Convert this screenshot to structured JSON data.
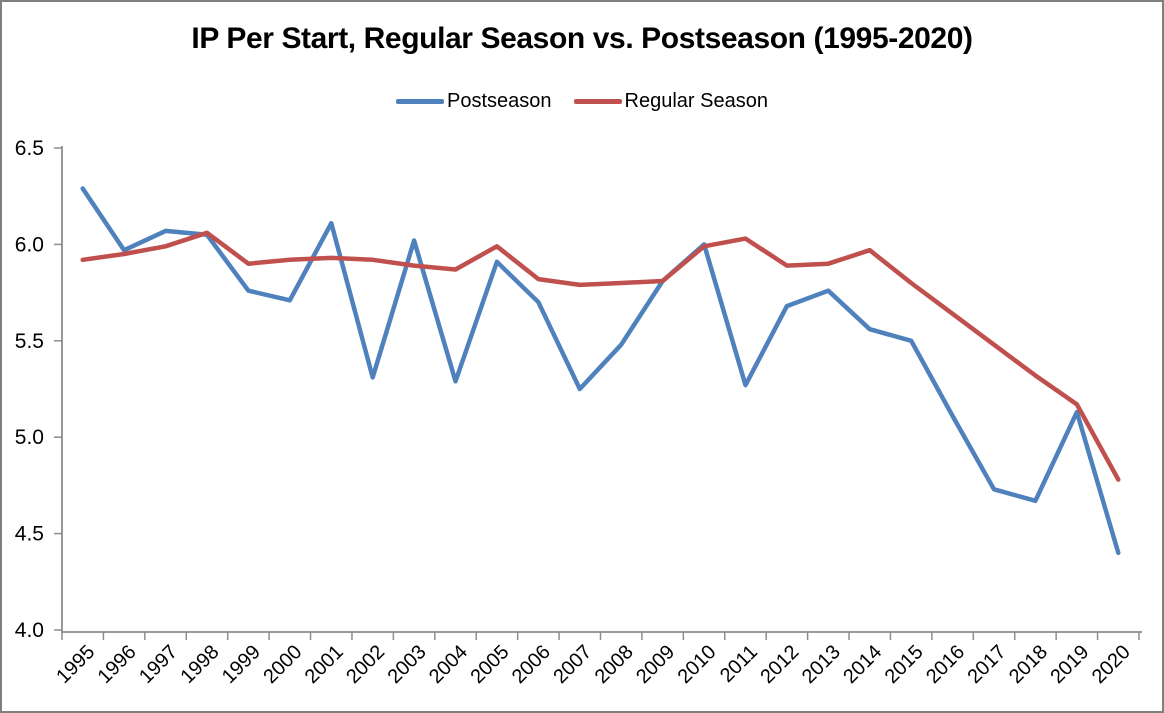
{
  "frame": {
    "border_color": "#7f7f7f",
    "background_color": "#ffffff"
  },
  "chart_data": {
    "type": "line",
    "title": "IP Per Start, Regular Season vs. Postseason (1995-2020)",
    "xlabel": "",
    "ylabel": "",
    "categories": [
      "1995",
      "1996",
      "1997",
      "1998",
      "1999",
      "2000",
      "2001",
      "2002",
      "2003",
      "2004",
      "2005",
      "2006",
      "2007",
      "2008",
      "2009",
      "2010",
      "2011",
      "2012",
      "2013",
      "2014",
      "2015",
      "2016",
      "2017",
      "2018",
      "2019",
      "2020"
    ],
    "series": [
      {
        "name": "Postseason",
        "color": "#4F81BD",
        "values": [
          6.29,
          5.97,
          6.07,
          6.05,
          5.76,
          5.71,
          6.11,
          5.31,
          6.02,
          5.29,
          5.91,
          5.7,
          5.25,
          5.48,
          5.81,
          6.0,
          5.27,
          5.68,
          5.76,
          5.56,
          5.5,
          5.11,
          4.73,
          4.67,
          5.13,
          4.4
        ]
      },
      {
        "name": "Regular Season",
        "color": "#C0504D",
        "values": [
          5.92,
          5.95,
          5.99,
          6.06,
          5.9,
          5.92,
          5.93,
          5.92,
          5.89,
          5.87,
          5.99,
          5.82,
          5.79,
          5.8,
          5.81,
          5.99,
          6.03,
          5.89,
          5.9,
          5.97,
          5.8,
          5.64,
          5.48,
          5.32,
          5.17,
          4.78
        ]
      }
    ],
    "ylim": [
      4.0,
      6.5
    ],
    "y_tick_labels": [
      "6.5",
      "6.0",
      "5.5",
      "5.0",
      "4.5",
      "4.0"
    ],
    "y_tick_values": [
      6.5,
      6.0,
      5.5,
      5.0,
      4.5,
      4.0
    ],
    "grid": "off",
    "legend_position": "top-center",
    "axis_color": "#8c8c8c",
    "x_label_rotation_deg": -45
  }
}
